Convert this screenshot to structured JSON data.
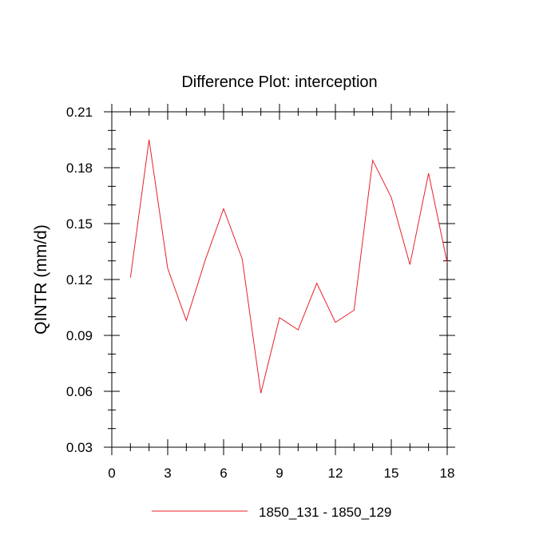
{
  "chart_data": {
    "type": "line",
    "title": "Difference Plot: interception",
    "xlabel": "",
    "ylabel": "QINTR  (mm/d)",
    "xlim": [
      0,
      18
    ],
    "ylim": [
      0.03,
      0.21
    ],
    "xticks": [
      0,
      3,
      6,
      9,
      12,
      15,
      18
    ],
    "xtick_labels": [
      "0",
      "3",
      "6",
      "9",
      "12",
      "15",
      "18"
    ],
    "yticks": [
      0.03,
      0.06,
      0.09,
      0.12,
      0.15,
      0.18,
      0.21
    ],
    "ytick_labels": [
      "0.03",
      "0.06",
      "0.09",
      "0.12",
      "0.15",
      "0.18",
      "0.21"
    ],
    "grid": false,
    "legend_position": "bottom-center",
    "series": [
      {
        "name": "1850_131 - 1850_129",
        "color": "#e8202a",
        "x": [
          1,
          2,
          3,
          4,
          5,
          6,
          7,
          8,
          9,
          10,
          11,
          12,
          13,
          14,
          15,
          16,
          17,
          18
        ],
        "values": [
          0.121,
          0.195,
          0.126,
          0.098,
          0.13,
          0.158,
          0.131,
          0.059,
          0.0995,
          0.093,
          0.118,
          0.097,
          0.1035,
          0.184,
          0.164,
          0.128,
          0.177,
          0.129
        ]
      }
    ]
  }
}
